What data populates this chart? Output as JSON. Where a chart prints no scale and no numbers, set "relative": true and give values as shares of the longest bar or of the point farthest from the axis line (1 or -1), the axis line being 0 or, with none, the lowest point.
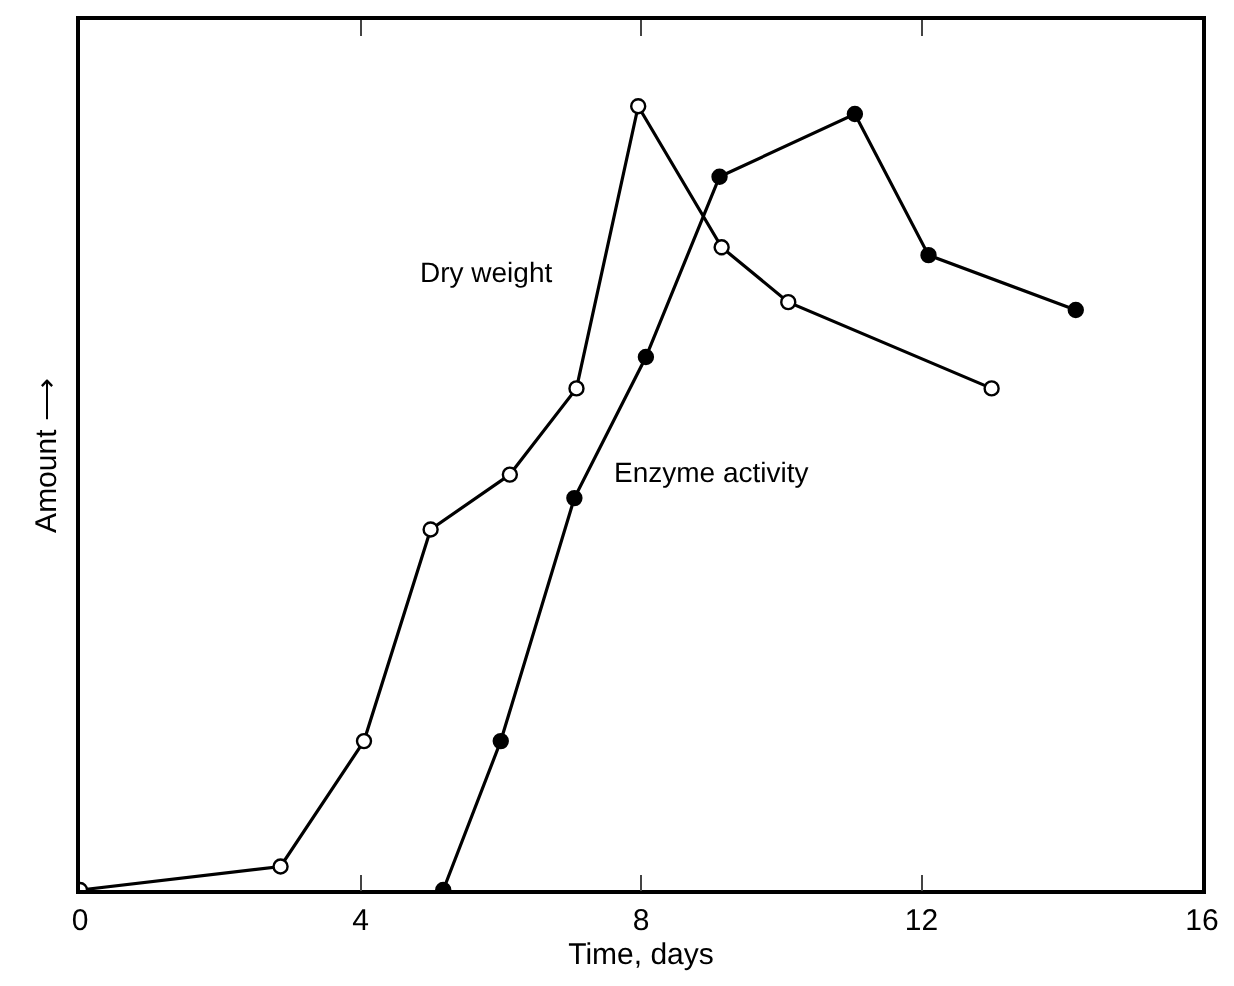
{
  "chart_data": {
    "type": "line",
    "relative": true,
    "xlabel": "Time, days",
    "ylabel": "Amount ⟶",
    "xlim": [
      0,
      16
    ],
    "xticks": [
      0,
      4,
      8,
      12,
      16
    ],
    "line_style": "solid",
    "series": [
      {
        "name": "Dry weight",
        "color": "#000000",
        "marker": "circle-open",
        "x": [
          0,
          2.86,
          4.05,
          5.0,
          6.13,
          7.08,
          7.96,
          9.15,
          10.1,
          13.0
        ],
        "values": [
          0,
          0.03,
          0.19,
          0.46,
          0.53,
          0.64,
          1.0,
          0.82,
          0.75,
          0.64
        ]
      },
      {
        "name": "Enzyme activity",
        "color": "#000000",
        "marker": "circle",
        "x": [
          5.18,
          6.0,
          7.05,
          8.07,
          9.12,
          11.05,
          12.1,
          14.2
        ],
        "values": [
          0,
          0.19,
          0.5,
          0.68,
          0.91,
          0.99,
          0.81,
          0.74
        ]
      }
    ]
  }
}
